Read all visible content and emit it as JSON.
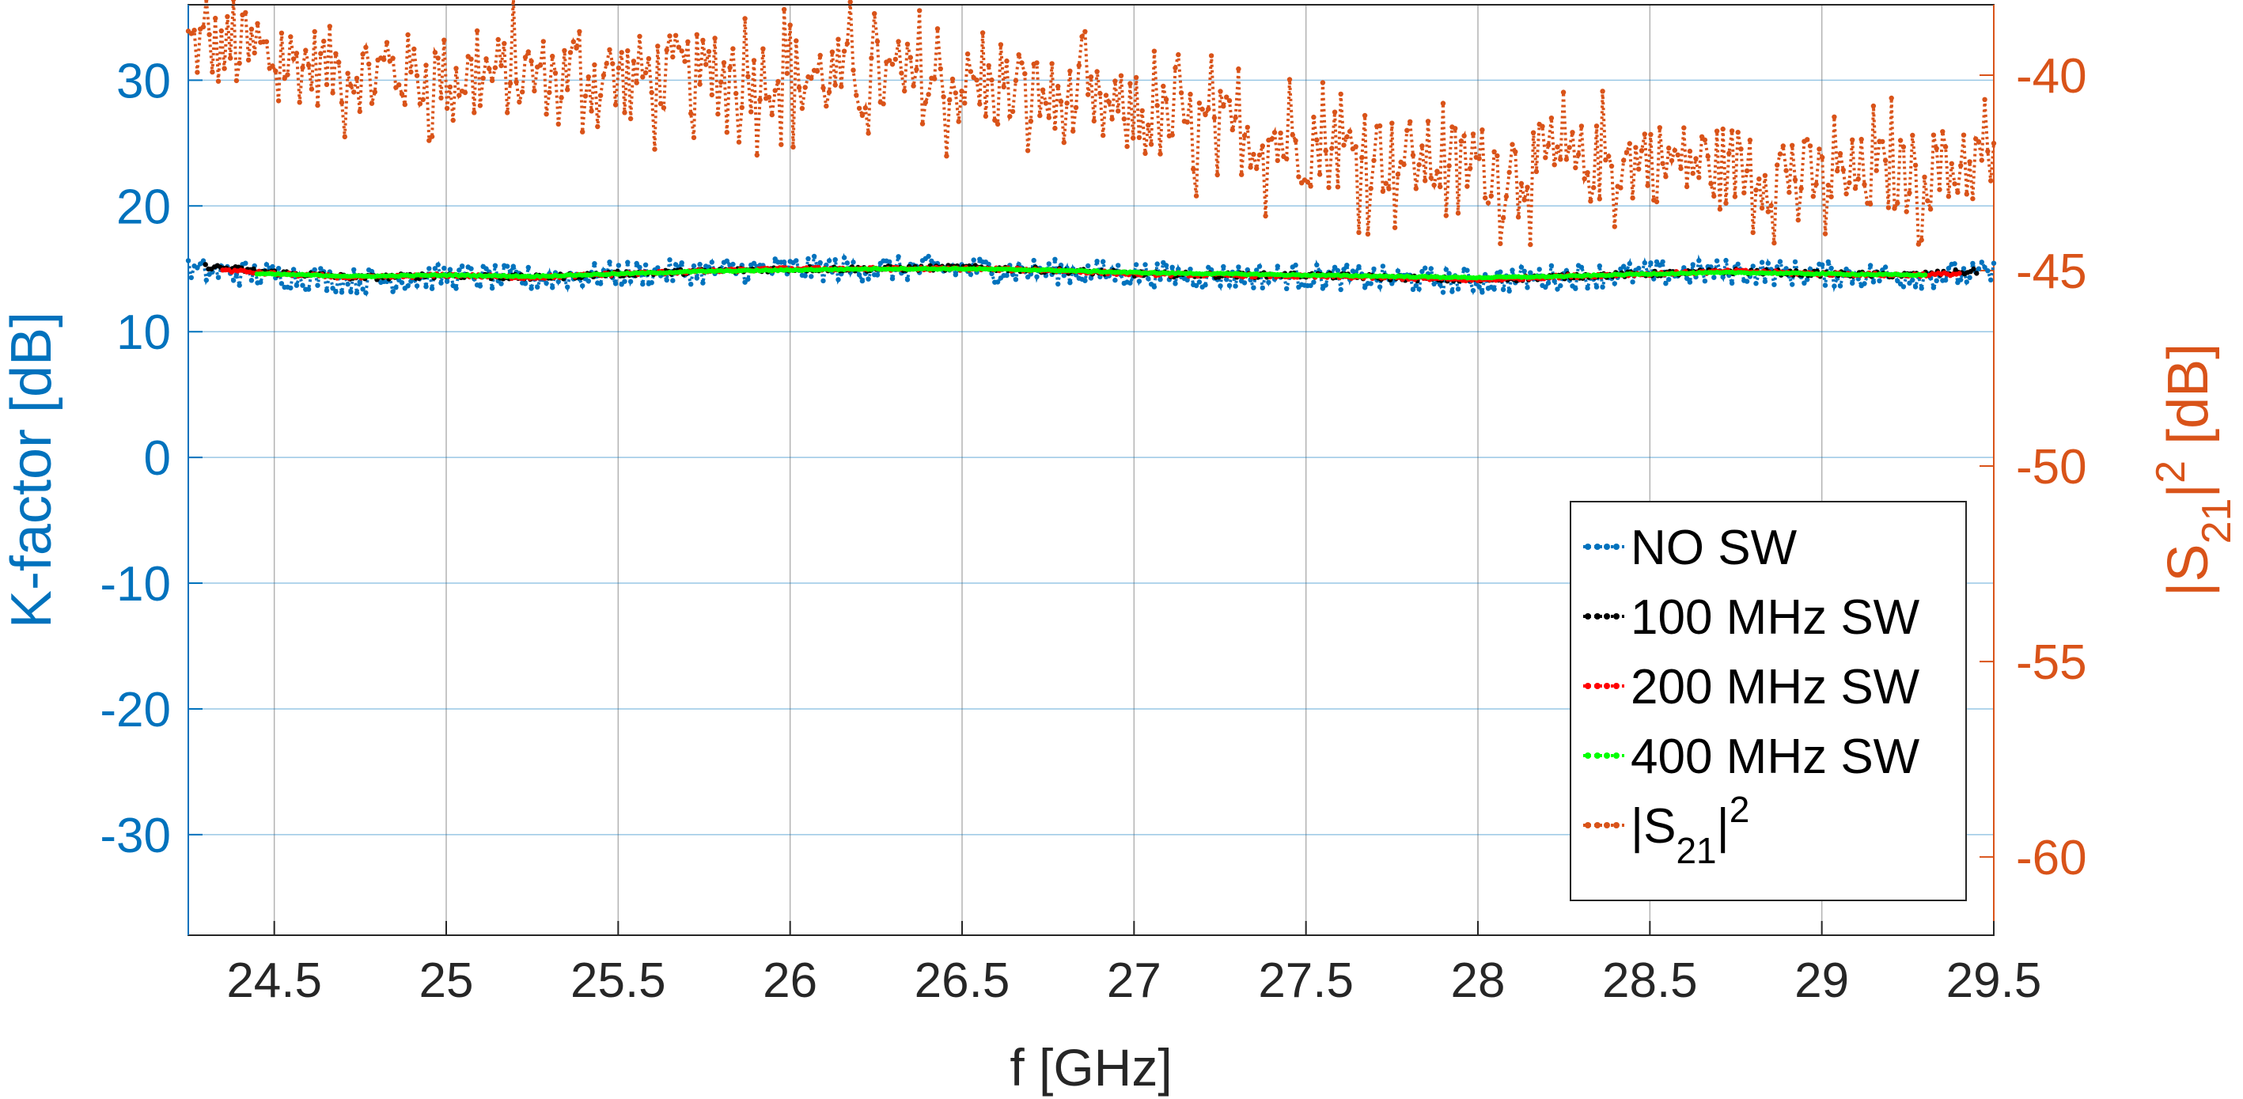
{
  "chart_data": {
    "type": "line",
    "xlabel": "f [GHz]",
    "ylabel_left": "K-factor [dB]",
    "ylabel_right": {
      "prefix": "|S",
      "sub": "21",
      "sup": "2",
      "suffix": "| [dB]"
    },
    "xlim": [
      24.25,
      29.5
    ],
    "ylim_left": [
      -38,
      36
    ],
    "ylim_right": [
      -62,
      -38.2
    ],
    "xticks": [
      "24.5",
      "25",
      "25.5",
      "26",
      "26.5",
      "27",
      "27.5",
      "28",
      "28.5",
      "29",
      "29.5"
    ],
    "yticks_left": [
      "30",
      "20",
      "10",
      "0",
      "-10",
      "-20",
      "-30"
    ],
    "yticks_right": [
      "-40",
      "-45",
      "-50",
      "-55",
      "-60"
    ],
    "grid": true,
    "legend_position": "bottom-right",
    "colors": {
      "left_axis": "#0072BD",
      "right_axis": "#D95319",
      "grid": "#26262640"
    },
    "series": [
      {
        "name": "NO SW",
        "axis": "left",
        "color": "#0072BD",
        "style": "dotted-markers",
        "x": [
          24.25,
          24.5,
          24.75,
          25.0,
          25.25,
          25.5,
          25.75,
          26.0,
          26.25,
          26.5,
          26.75,
          27.0,
          27.25,
          27.5,
          27.75,
          28.0,
          28.25,
          28.5,
          28.75,
          29.0,
          29.25,
          29.5
        ],
        "y": [
          14.8,
          14.5,
          14.0,
          14.4,
          14.2,
          14.6,
          14.8,
          15.0,
          15.0,
          15.0,
          14.8,
          14.6,
          14.4,
          14.4,
          14.2,
          14.0,
          14.4,
          14.6,
          14.8,
          14.6,
          14.4,
          14.6
        ],
        "spread": 1.0
      },
      {
        "name": "100 MHz SW",
        "axis": "left",
        "color": "#000000",
        "style": "dotted-markers",
        "x": [
          24.3,
          24.5,
          24.75,
          25.0,
          25.25,
          25.5,
          25.75,
          26.0,
          26.25,
          26.5,
          26.75,
          27.0,
          27.25,
          27.5,
          27.75,
          28.0,
          28.25,
          28.5,
          28.75,
          29.0,
          29.25,
          29.45
        ],
        "y": [
          15.2,
          14.7,
          14.3,
          14.5,
          14.3,
          14.6,
          14.8,
          15.0,
          15.0,
          15.1,
          14.9,
          14.6,
          14.5,
          14.5,
          14.3,
          14.1,
          14.4,
          14.6,
          14.8,
          14.6,
          14.5,
          14.8
        ],
        "spread": 0.2
      },
      {
        "name": "200 MHz SW",
        "axis": "left",
        "color": "#FF0000",
        "style": "dotted-markers",
        "x": [
          24.35,
          24.5,
          24.75,
          25.0,
          25.25,
          25.5,
          25.75,
          26.0,
          26.25,
          26.5,
          26.75,
          27.0,
          27.25,
          27.5,
          27.75,
          28.0,
          28.25,
          28.5,
          28.75,
          29.0,
          29.25,
          29.4
        ],
        "y": [
          14.9,
          14.6,
          14.3,
          14.5,
          14.3,
          14.6,
          14.8,
          15.0,
          15.0,
          15.0,
          14.9,
          14.6,
          14.5,
          14.4,
          14.3,
          14.1,
          14.4,
          14.6,
          14.8,
          14.6,
          14.5,
          14.6
        ],
        "spread": 0.12
      },
      {
        "name": "400 MHz SW",
        "axis": "left",
        "color": "#00FF00",
        "style": "dotted-markers",
        "x": [
          24.45,
          24.75,
          25.0,
          25.25,
          25.5,
          25.75,
          26.0,
          26.25,
          26.5,
          26.75,
          27.0,
          27.25,
          27.5,
          27.75,
          28.0,
          28.25,
          28.5,
          28.75,
          29.0,
          29.3
        ],
        "y": [
          14.6,
          14.4,
          14.5,
          14.4,
          14.6,
          14.8,
          14.9,
          15.0,
          15.0,
          14.9,
          14.7,
          14.6,
          14.5,
          14.4,
          14.3,
          14.4,
          14.6,
          14.7,
          14.6,
          14.5
        ],
        "spread": 0.05
      },
      {
        "name": "|S21|^2",
        "axis": "right",
        "color": "#D95319",
        "style": "dotted-markers",
        "x": [
          24.25,
          24.5,
          24.75,
          25.0,
          25.25,
          25.5,
          25.75,
          26.0,
          26.25,
          26.5,
          26.75,
          26.85,
          27.0,
          27.25,
          27.5,
          27.75,
          28.0,
          28.25,
          28.5,
          28.75,
          29.0,
          29.25,
          29.5
        ],
        "y": [
          -39.2,
          -39.6,
          -39.9,
          -40.0,
          -40.0,
          -40.0,
          -40.0,
          -40.0,
          -40.1,
          -40.3,
          -40.6,
          -40.8,
          -41.1,
          -41.4,
          -41.8,
          -42.1,
          -42.3,
          -42.3,
          -42.2,
          -42.3,
          -42.7,
          -42.5,
          -42.2
        ],
        "spread": 1.5
      }
    ],
    "legend": {
      "entries": [
        {
          "label": "NO SW",
          "color": "#0072BD"
        },
        {
          "label": "100 MHz SW",
          "color": "#000000"
        },
        {
          "label": "200 MHz SW",
          "color": "#FF0000"
        },
        {
          "label": "400 MHz SW",
          "color": "#00FF00"
        },
        {
          "label": {
            "prefix": "|S",
            "sub": "21",
            "sup": "2",
            "suffix": "|"
          },
          "color": "#D95319"
        }
      ]
    }
  }
}
